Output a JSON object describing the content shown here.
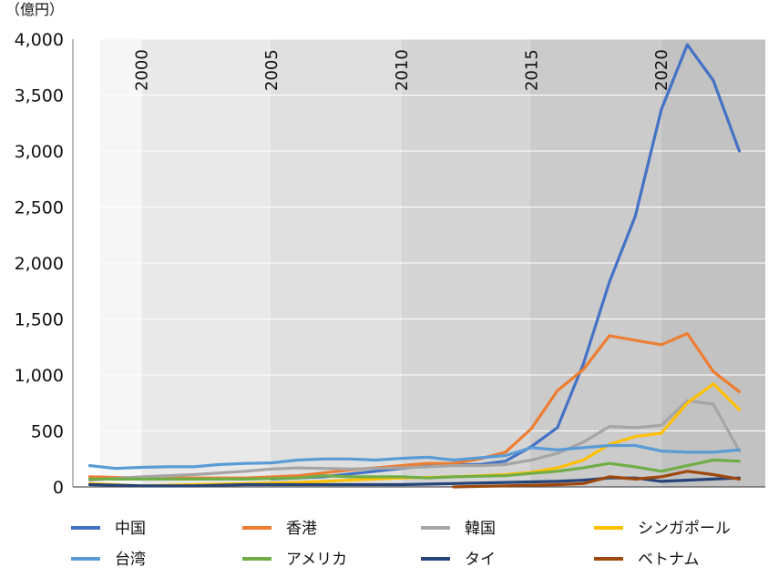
{
  "chart_data": {
    "type": "line",
    "unit_label": "（億円）",
    "ylim": [
      0,
      4000
    ],
    "y_ticks": [
      0,
      500,
      1000,
      1500,
      2000,
      2500,
      3000,
      3500,
      4000
    ],
    "y_tick_labels": [
      "0",
      "500",
      "1,000",
      "1,500",
      "2,000",
      "2,500",
      "3,000",
      "3,500",
      "4,000"
    ],
    "x_labels": [
      "2000",
      "2005",
      "2010",
      "2015",
      "2020"
    ],
    "x_label_years": [
      2000,
      2005,
      2010,
      2015,
      2020
    ],
    "x": [
      1998,
      1999,
      2000,
      2001,
      2002,
      2003,
      2004,
      2005,
      2006,
      2007,
      2008,
      2009,
      2010,
      2011,
      2012,
      2013,
      2014,
      2015,
      2016,
      2017,
      2018,
      2019,
      2020,
      2021,
      2022,
      2023,
      2024
    ],
    "background_bands": [
      {
        "from": 1998.4,
        "to": 2000.0,
        "color": "#f6f6f6"
      },
      {
        "from": 2000.0,
        "to": 2004.95,
        "color": "#e9e9e9"
      },
      {
        "from": 2004.95,
        "to": 2010.0,
        "color": "#dfdfdf"
      },
      {
        "from": 2010.0,
        "to": 2014.95,
        "color": "#d5d5d5"
      },
      {
        "from": 2014.95,
        "to": 2020.0,
        "color": "#cbcbcb"
      },
      {
        "from": 2020.0,
        "to": 2024.0,
        "color": "#c2c2c2"
      }
    ],
    "grid": true,
    "legend_position": "bottom",
    "series": [
      {
        "name": "中国",
        "color": "#4472c4",
        "values": [
          null,
          null,
          null,
          null,
          null,
          null,
          null,
          null,
          null,
          null,
          null,
          null,
          null,
          null,
          null,
          null,
          null,
          null,
          null,
          null,
          null,
          null,
          null,
          null,
          null,
          null,
          null
        ],
        "points": [
          [
            2005,
            70
          ],
          [
            2007,
            90
          ],
          [
            2009,
            140
          ],
          [
            2011,
            190
          ],
          [
            2013,
            200
          ],
          [
            2014,
            230
          ],
          [
            2015,
            360
          ],
          [
            2016,
            530
          ],
          [
            2017,
            1100
          ],
          [
            2018,
            1830
          ],
          [
            2019,
            2420
          ],
          [
            2020,
            3370
          ],
          [
            2021,
            3950
          ],
          [
            2022,
            3630
          ],
          [
            2023,
            3000
          ]
        ]
      },
      {
        "name": "香港",
        "color": "#ed7d31",
        "points": [
          [
            1998,
            90
          ],
          [
            2000,
            80
          ],
          [
            2002,
            80
          ],
          [
            2004,
            80
          ],
          [
            2006,
            100
          ],
          [
            2008,
            150
          ],
          [
            2010,
            190
          ],
          [
            2011,
            210
          ],
          [
            2012,
            210
          ],
          [
            2013,
            250
          ],
          [
            2014,
            310
          ],
          [
            2015,
            520
          ],
          [
            2016,
            860
          ],
          [
            2017,
            1050
          ],
          [
            2018,
            1350
          ],
          [
            2019,
            1310
          ],
          [
            2020,
            1270
          ],
          [
            2021,
            1370
          ],
          [
            2022,
            1030
          ],
          [
            2023,
            850
          ]
        ]
      },
      {
        "name": "韓国",
        "color": "#a5a5a5",
        "points": [
          [
            1998,
            60
          ],
          [
            2000,
            90
          ],
          [
            2002,
            110
          ],
          [
            2004,
            140
          ],
          [
            2005,
            160
          ],
          [
            2006,
            170
          ],
          [
            2008,
            160
          ],
          [
            2010,
            170
          ],
          [
            2011,
            180
          ],
          [
            2012,
            190
          ],
          [
            2013,
            190
          ],
          [
            2014,
            200
          ],
          [
            2015,
            240
          ],
          [
            2016,
            300
          ],
          [
            2017,
            400
          ],
          [
            2018,
            540
          ],
          [
            2019,
            530
          ],
          [
            2020,
            550
          ],
          [
            2021,
            770
          ],
          [
            2022,
            740
          ],
          [
            2023,
            320
          ]
        ]
      },
      {
        "name": "シンガポール",
        "color": "#ffc000",
        "points": [
          [
            1998,
            30
          ],
          [
            2000,
            10
          ],
          [
            2002,
            20
          ],
          [
            2004,
            30
          ],
          [
            2006,
            40
          ],
          [
            2008,
            60
          ],
          [
            2010,
            80
          ],
          [
            2012,
            90
          ],
          [
            2014,
            110
          ],
          [
            2015,
            130
          ],
          [
            2016,
            170
          ],
          [
            2017,
            240
          ],
          [
            2018,
            380
          ],
          [
            2019,
            450
          ],
          [
            2020,
            480
          ],
          [
            2021,
            750
          ],
          [
            2022,
            920
          ],
          [
            2023,
            690
          ]
        ]
      },
      {
        "name": "台湾",
        "color": "#5b9bd5",
        "points": [
          [
            1998,
            190
          ],
          [
            1999,
            165
          ],
          [
            2000,
            175
          ],
          [
            2001,
            180
          ],
          [
            2002,
            180
          ],
          [
            2003,
            200
          ],
          [
            2004,
            210
          ],
          [
            2005,
            215
          ],
          [
            2006,
            240
          ],
          [
            2007,
            250
          ],
          [
            2008,
            250
          ],
          [
            2009,
            240
          ],
          [
            2010,
            255
          ],
          [
            2011,
            265
          ],
          [
            2012,
            240
          ],
          [
            2013,
            260
          ],
          [
            2014,
            280
          ],
          [
            2015,
            350
          ],
          [
            2016,
            330
          ],
          [
            2017,
            350
          ],
          [
            2018,
            370
          ],
          [
            2019,
            370
          ],
          [
            2020,
            320
          ],
          [
            2021,
            310
          ],
          [
            2022,
            310
          ],
          [
            2023,
            330
          ]
        ]
      },
      {
        "name": "アメリカ",
        "color": "#70ad47",
        "points": [
          [
            1998,
            70
          ],
          [
            2000,
            70
          ],
          [
            2002,
            70
          ],
          [
            2004,
            70
          ],
          [
            2006,
            80
          ],
          [
            2007,
            100
          ],
          [
            2008,
            90
          ],
          [
            2010,
            90
          ],
          [
            2011,
            80
          ],
          [
            2012,
            90
          ],
          [
            2014,
            100
          ],
          [
            2015,
            120
          ],
          [
            2016,
            140
          ],
          [
            2017,
            170
          ],
          [
            2018,
            210
          ],
          [
            2019,
            180
          ],
          [
            2020,
            140
          ],
          [
            2021,
            190
          ],
          [
            2022,
            240
          ],
          [
            2023,
            230
          ]
        ]
      },
      {
        "name": "タイ",
        "color": "#264478",
        "points": [
          [
            1998,
            20
          ],
          [
            2000,
            10
          ],
          [
            2002,
            10
          ],
          [
            2004,
            20
          ],
          [
            2006,
            20
          ],
          [
            2008,
            20
          ],
          [
            2010,
            20
          ],
          [
            2012,
            30
          ],
          [
            2014,
            40
          ],
          [
            2016,
            50
          ],
          [
            2017,
            60
          ],
          [
            2018,
            80
          ],
          [
            2019,
            80
          ],
          [
            2020,
            50
          ],
          [
            2021,
            60
          ],
          [
            2022,
            70
          ],
          [
            2023,
            80
          ]
        ]
      },
      {
        "name": "ベトナム",
        "color": "#9e480e",
        "points": [
          [
            2012,
            0
          ],
          [
            2014,
            10
          ],
          [
            2016,
            20
          ],
          [
            2017,
            30
          ],
          [
            2018,
            90
          ],
          [
            2019,
            70
          ],
          [
            2020,
            90
          ],
          [
            2021,
            140
          ],
          [
            2022,
            110
          ],
          [
            2023,
            70
          ]
        ]
      }
    ]
  }
}
